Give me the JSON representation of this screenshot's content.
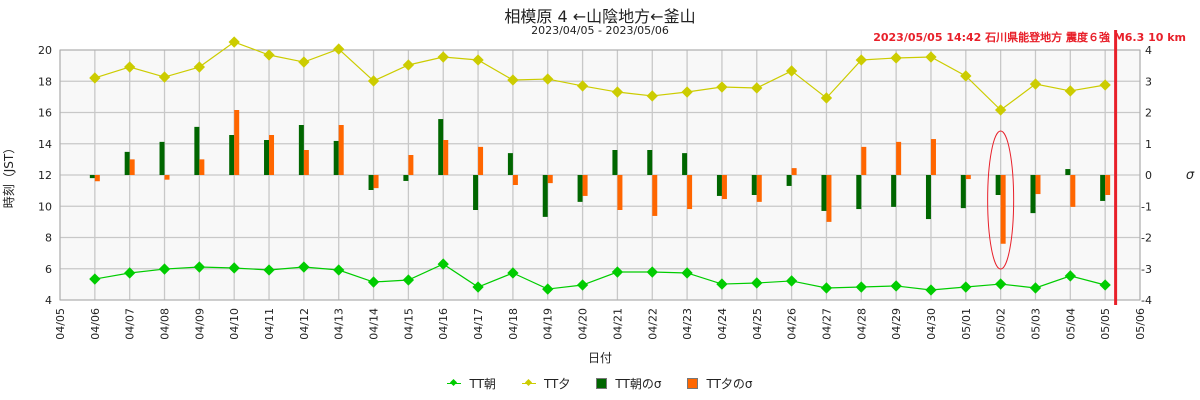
{
  "chart_data": {
    "type": "line+bar",
    "title": "相模原 4 ←山陰地方←釜山",
    "subtitle": "2023/04/05 - 2023/05/06",
    "event_annotation": "2023/05/05 14:42 石川県能登地方 震度６強 M6.3 10 km",
    "event_day_index": 30.3,
    "xlabel": "日付",
    "ylabel": "時刻（JST）",
    "y2label": "σ",
    "ylim": [
      4,
      20
    ],
    "y2lim": [
      -4,
      4
    ],
    "yticks": [
      "4",
      "6",
      "8",
      "10",
      "12",
      "14",
      "16",
      "18",
      "20"
    ],
    "y2ticks": [
      "-4",
      "-3",
      "-2",
      "-1",
      "0",
      "1",
      "2",
      "3",
      "4"
    ],
    "xticks": [
      "04/05",
      "04/06",
      "04/07",
      "04/08",
      "04/09",
      "04/10",
      "04/11",
      "04/12",
      "04/13",
      "04/14",
      "04/15",
      "04/16",
      "04/17",
      "04/18",
      "04/19",
      "04/20",
      "04/21",
      "04/22",
      "04/23",
      "04/24",
      "04/25",
      "04/26",
      "04/27",
      "04/28",
      "04/29",
      "04/30",
      "05/01",
      "05/02",
      "05/03",
      "05/04",
      "05/05",
      "05/06"
    ],
    "grid": true,
    "legend_position": "bottom",
    "highlight_day_index": 27,
    "series": [
      {
        "name": "TT朝",
        "kind": "line",
        "axis": "left",
        "color": "#00cc00",
        "values": [
          5.34,
          5.73,
          5.98,
          6.11,
          6.05,
          5.92,
          6.11,
          5.92,
          5.15,
          5.28,
          6.3,
          4.83,
          5.73,
          4.7,
          4.96,
          5.79,
          5.79,
          5.73,
          5.02,
          5.09,
          5.22,
          4.77,
          4.83,
          4.9,
          4.64,
          4.83,
          5.02,
          4.77,
          5.54,
          4.96
        ]
      },
      {
        "name": "TT夕",
        "kind": "line",
        "axis": "left",
        "color": "#cccc00",
        "values": [
          18.21,
          18.91,
          18.27,
          18.91,
          20.51,
          19.68,
          19.23,
          20.06,
          18.02,
          19.04,
          19.55,
          19.36,
          18.08,
          18.14,
          17.7,
          17.31,
          17.06,
          17.31,
          17.63,
          17.57,
          18.66,
          16.93,
          19.36,
          19.49,
          19.55,
          18.34,
          16.16,
          17.82,
          17.38,
          17.76
        ]
      },
      {
        "name": "TT朝のσ",
        "kind": "bar",
        "axis": "right",
        "color": "#006600",
        "values": [
          -0.1,
          0.74,
          1.06,
          1.54,
          1.28,
          1.12,
          1.6,
          1.09,
          -0.48,
          -0.19,
          1.79,
          -1.12,
          0.7,
          -1.34,
          -0.86,
          0.8,
          0.8,
          0.7,
          -0.67,
          -0.64,
          -0.35,
          -1.15,
          -1.09,
          -1.02,
          -1.41,
          -1.06,
          -0.64,
          -1.22,
          0.19,
          -0.83
        ]
      },
      {
        "name": "TT夕のσ",
        "kind": "bar",
        "axis": "right",
        "color": "#ff6600",
        "values": [
          -0.2,
          0.5,
          -0.15,
          0.5,
          2.08,
          1.28,
          0.8,
          1.6,
          -0.42,
          0.64,
          1.12,
          0.9,
          -0.32,
          -0.26,
          -0.67,
          -1.12,
          -1.31,
          -1.09,
          -0.77,
          -0.86,
          0.22,
          -1.5,
          0.9,
          1.06,
          1.15,
          -0.13,
          -2.2,
          -0.61,
          -1.02,
          -0.64
        ]
      }
    ]
  }
}
